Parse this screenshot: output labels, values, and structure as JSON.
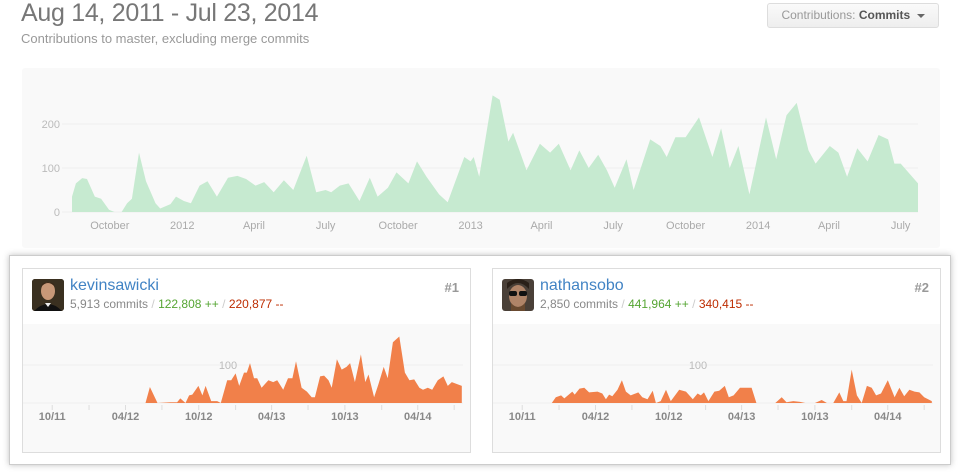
{
  "header": {
    "title": "Aug 14, 2011 - Jul 23, 2014",
    "subtitle": "Contributions to master, excluding merge commits",
    "dropdown": {
      "label": "Contributions:",
      "selected": "Commits",
      "icon": "caret-down-icon"
    }
  },
  "colors": {
    "main_fill": "#c6ead0",
    "contributor_fill": "#f1804a",
    "link": "#4183c4",
    "additions": "#55a532",
    "deletions": "#bd2c00"
  },
  "chart_data": [
    {
      "type": "area",
      "xdomain": [
        "2011-08-14",
        "2014-07-23"
      ],
      "ylim": [
        0,
        270
      ],
      "yticks": [
        0,
        100,
        200
      ],
      "xticks": [
        {
          "date": "2011-10-01",
          "label": "October"
        },
        {
          "date": "2012-01-01",
          "label": "2012"
        },
        {
          "date": "2012-04-01",
          "label": "April"
        },
        {
          "date": "2012-07-01",
          "label": "July"
        },
        {
          "date": "2012-10-01",
          "label": "October"
        },
        {
          "date": "2013-01-01",
          "label": "2013"
        },
        {
          "date": "2013-04-01",
          "label": "April"
        },
        {
          "date": "2013-07-01",
          "label": "July"
        },
        {
          "date": "2013-10-01",
          "label": "October"
        },
        {
          "date": "2014-01-01",
          "label": "2014"
        },
        {
          "date": "2014-04-01",
          "label": "April"
        },
        {
          "date": "2014-07-01",
          "label": "July"
        }
      ],
      "grid": true,
      "points": [
        [
          "2011-08-14",
          35
        ],
        [
          "2011-08-19",
          65
        ],
        [
          "2011-08-27",
          77
        ],
        [
          "2011-09-02",
          75
        ],
        [
          "2011-09-07",
          55
        ],
        [
          "2011-09-12",
          35
        ],
        [
          "2011-09-20",
          30
        ],
        [
          "2011-09-30",
          5
        ],
        [
          "2011-10-07",
          0
        ],
        [
          "2011-10-16",
          0
        ],
        [
          "2011-10-23",
          20
        ],
        [
          "2011-10-29",
          30
        ],
        [
          "2011-11-07",
          135
        ],
        [
          "2011-11-16",
          70
        ],
        [
          "2011-11-28",
          20
        ],
        [
          "2011-12-04",
          8
        ],
        [
          "2011-12-17",
          18
        ],
        [
          "2011-12-24",
          35
        ],
        [
          "2012-01-03",
          25
        ],
        [
          "2012-01-12",
          20
        ],
        [
          "2012-01-23",
          60
        ],
        [
          "2012-02-02",
          70
        ],
        [
          "2012-02-14",
          35
        ],
        [
          "2012-02-28",
          78
        ],
        [
          "2012-03-11",
          82
        ],
        [
          "2012-03-22",
          75
        ],
        [
          "2012-04-03",
          60
        ],
        [
          "2012-04-14",
          68
        ],
        [
          "2012-04-26",
          45
        ],
        [
          "2012-05-09",
          72
        ],
        [
          "2012-05-21",
          50
        ],
        [
          "2012-06-07",
          128
        ],
        [
          "2012-06-19",
          45
        ],
        [
          "2012-07-01",
          50
        ],
        [
          "2012-07-08",
          45
        ],
        [
          "2012-07-19",
          60
        ],
        [
          "2012-07-30",
          65
        ],
        [
          "2012-08-13",
          25
        ],
        [
          "2012-08-26",
          78
        ],
        [
          "2012-09-05",
          35
        ],
        [
          "2012-09-18",
          55
        ],
        [
          "2012-09-29",
          90
        ],
        [
          "2012-10-14",
          65
        ],
        [
          "2012-10-25",
          115
        ],
        [
          "2012-11-06",
          80
        ],
        [
          "2012-11-22",
          40
        ],
        [
          "2012-12-03",
          22
        ],
        [
          "2012-12-24",
          125
        ],
        [
          "2013-01-01",
          115
        ],
        [
          "2013-01-05",
          125
        ],
        [
          "2013-01-12",
          80
        ],
        [
          "2013-01-29",
          265
        ],
        [
          "2013-02-07",
          255
        ],
        [
          "2013-02-18",
          160
        ],
        [
          "2013-02-24",
          180
        ],
        [
          "2013-03-13",
          95
        ],
        [
          "2013-03-30",
          155
        ],
        [
          "2013-04-12",
          135
        ],
        [
          "2013-04-23",
          155
        ],
        [
          "2013-05-08",
          95
        ],
        [
          "2013-05-19",
          140
        ],
        [
          "2013-05-31",
          100
        ],
        [
          "2013-06-12",
          130
        ],
        [
          "2013-06-23",
          95
        ],
        [
          "2013-07-03",
          55
        ],
        [
          "2013-07-18",
          120
        ],
        [
          "2013-07-27",
          50
        ],
        [
          "2013-08-17",
          165
        ],
        [
          "2013-08-30",
          150
        ],
        [
          "2013-09-07",
          125
        ],
        [
          "2013-09-18",
          170
        ],
        [
          "2013-10-01",
          170
        ],
        [
          "2013-10-18",
          215
        ],
        [
          "2013-11-04",
          125
        ],
        [
          "2013-11-15",
          190
        ],
        [
          "2013-11-26",
          100
        ],
        [
          "2013-12-07",
          150
        ],
        [
          "2013-12-21",
          40
        ],
        [
          "2014-01-11",
          215
        ],
        [
          "2014-01-24",
          120
        ],
        [
          "2014-02-06",
          220
        ],
        [
          "2014-02-19",
          248
        ],
        [
          "2014-03-06",
          140
        ],
        [
          "2014-03-15",
          110
        ],
        [
          "2014-04-02",
          150
        ],
        [
          "2014-04-13",
          135
        ],
        [
          "2014-04-24",
          80
        ],
        [
          "2014-05-07",
          145
        ],
        [
          "2014-05-20",
          115
        ],
        [
          "2014-06-03",
          175
        ],
        [
          "2014-06-15",
          165
        ],
        [
          "2014-06-23",
          110
        ],
        [
          "2014-07-01",
          110
        ],
        [
          "2014-07-23",
          65
        ]
      ]
    }
  ],
  "contributors": [
    {
      "rank": "#1",
      "username": "kevinsawicki",
      "commits": "5,913 commits",
      "additions": "122,808 ++",
      "deletions": "220,877 --",
      "separator": "/",
      "avatar": "avatar-kevinsawicki",
      "chart": {
        "type": "area",
        "xdomain": [
          "2011-08-14",
          "2014-07-23"
        ],
        "gridline": 100,
        "gridline_label": "100",
        "xticks": [
          {
            "date": "2011-10-01",
            "label": "10/11"
          },
          {
            "date": "2012-01-01",
            "label": ""
          },
          {
            "date": "2012-04-01",
            "label": "04/12"
          },
          {
            "date": "2012-07-01",
            "label": ""
          },
          {
            "date": "2012-10-01",
            "label": "10/12"
          },
          {
            "date": "2013-01-01",
            "label": ""
          },
          {
            "date": "2013-04-01",
            "label": "04/13"
          },
          {
            "date": "2013-07-01",
            "label": ""
          },
          {
            "date": "2013-10-01",
            "label": "10/13"
          },
          {
            "date": "2014-01-01",
            "label": ""
          },
          {
            "date": "2014-04-01",
            "label": "04/14"
          },
          {
            "date": "2014-07-01",
            "label": ""
          }
        ],
        "points": [
          [
            "2011-08-14",
            0
          ],
          [
            "2012-05-21",
            0
          ],
          [
            "2012-06-01",
            42
          ],
          [
            "2012-06-20",
            0
          ],
          [
            "2012-07-22",
            2
          ],
          [
            "2012-08-08",
            2
          ],
          [
            "2012-08-16",
            12
          ],
          [
            "2012-08-29",
            0
          ],
          [
            "2012-09-07",
            20
          ],
          [
            "2012-09-15",
            22
          ],
          [
            "2012-09-30",
            45
          ],
          [
            "2012-10-10",
            20
          ],
          [
            "2012-10-18",
            45
          ],
          [
            "2012-11-01",
            5
          ],
          [
            "2012-11-16",
            5
          ],
          [
            "2012-11-25",
            0
          ],
          [
            "2012-12-11",
            60
          ],
          [
            "2012-12-21",
            60
          ],
          [
            "2013-01-01",
            78
          ],
          [
            "2013-01-10",
            45
          ],
          [
            "2013-01-22",
            80
          ],
          [
            "2013-01-29",
            80
          ],
          [
            "2013-02-06",
            105
          ],
          [
            "2013-02-16",
            65
          ],
          [
            "2013-02-24",
            65
          ],
          [
            "2013-03-07",
            40
          ],
          [
            "2013-03-24",
            60
          ],
          [
            "2013-04-05",
            55
          ],
          [
            "2013-04-15",
            60
          ],
          [
            "2013-04-30",
            35
          ],
          [
            "2013-05-12",
            65
          ],
          [
            "2013-05-23",
            65
          ],
          [
            "2013-06-01",
            110
          ],
          [
            "2013-06-15",
            40
          ],
          [
            "2013-06-28",
            30
          ],
          [
            "2013-07-10",
            15
          ],
          [
            "2013-07-18",
            15
          ],
          [
            "2013-07-31",
            70
          ],
          [
            "2013-08-10",
            72
          ],
          [
            "2013-08-21",
            60
          ],
          [
            "2013-08-29",
            40
          ],
          [
            "2013-09-11",
            115
          ],
          [
            "2013-09-23",
            88
          ],
          [
            "2013-10-05",
            95
          ],
          [
            "2013-10-14",
            105
          ],
          [
            "2013-10-26",
            55
          ],
          [
            "2013-11-10",
            128
          ],
          [
            "2013-11-21",
            55
          ],
          [
            "2013-11-29",
            75
          ],
          [
            "2013-12-13",
            15
          ],
          [
            "2013-12-24",
            50
          ],
          [
            "2014-01-06",
            95
          ],
          [
            "2014-01-16",
            65
          ],
          [
            "2014-01-29",
            160
          ],
          [
            "2014-02-14",
            175
          ],
          [
            "2014-02-28",
            80
          ],
          [
            "2014-03-11",
            60
          ],
          [
            "2014-03-23",
            62
          ],
          [
            "2014-04-05",
            40
          ],
          [
            "2014-04-14",
            35
          ],
          [
            "2014-04-26",
            40
          ],
          [
            "2014-05-07",
            35
          ],
          [
            "2014-05-21",
            60
          ],
          [
            "2014-06-04",
            70
          ],
          [
            "2014-06-15",
            45
          ],
          [
            "2014-06-25",
            55
          ],
          [
            "2014-07-20",
            45
          ]
        ]
      }
    },
    {
      "rank": "#2",
      "username": "nathansobo",
      "commits": "2,850 commits",
      "additions": "441,964 ++",
      "deletions": "340,415 --",
      "separator": "/",
      "avatar": "avatar-nathansobo",
      "chart": {
        "type": "area",
        "xdomain": [
          "2011-08-14",
          "2014-07-23"
        ],
        "gridline": 100,
        "gridline_label": "100",
        "xticks": [
          {
            "date": "2011-10-01",
            "label": "10/11"
          },
          {
            "date": "2012-01-01",
            "label": ""
          },
          {
            "date": "2012-04-01",
            "label": "04/12"
          },
          {
            "date": "2012-07-01",
            "label": ""
          },
          {
            "date": "2012-10-01",
            "label": "10/12"
          },
          {
            "date": "2013-01-01",
            "label": ""
          },
          {
            "date": "2013-04-01",
            "label": "04/13"
          },
          {
            "date": "2013-07-01",
            "label": ""
          },
          {
            "date": "2013-10-01",
            "label": "10/13"
          },
          {
            "date": "2014-01-01",
            "label": ""
          },
          {
            "date": "2014-04-01",
            "label": "04/14"
          },
          {
            "date": "2014-07-01",
            "label": ""
          }
        ],
        "points": [
          [
            "2011-08-14",
            0
          ],
          [
            "2011-12-14",
            0
          ],
          [
            "2011-12-24",
            15
          ],
          [
            "2012-01-06",
            20
          ],
          [
            "2012-01-14",
            12
          ],
          [
            "2012-02-03",
            30
          ],
          [
            "2012-02-09",
            22
          ],
          [
            "2012-02-21",
            38
          ],
          [
            "2012-03-04",
            40
          ],
          [
            "2012-03-16",
            28
          ],
          [
            "2012-04-06",
            30
          ],
          [
            "2012-04-18",
            25
          ],
          [
            "2012-04-27",
            10
          ],
          [
            "2012-05-05",
            22
          ],
          [
            "2012-05-13",
            18
          ],
          [
            "2012-05-26",
            35
          ],
          [
            "2012-06-06",
            60
          ],
          [
            "2012-06-16",
            30
          ],
          [
            "2012-06-28",
            20
          ],
          [
            "2012-07-17",
            28
          ],
          [
            "2012-07-27",
            15
          ],
          [
            "2012-08-09",
            10
          ],
          [
            "2012-08-22",
            32
          ],
          [
            "2012-08-30",
            0
          ],
          [
            "2012-09-11",
            5
          ],
          [
            "2012-09-24",
            35
          ],
          [
            "2012-10-06",
            5
          ],
          [
            "2012-10-27",
            35
          ],
          [
            "2012-11-13",
            30
          ],
          [
            "2012-11-30",
            10
          ],
          [
            "2012-12-12",
            25
          ],
          [
            "2012-12-20",
            20
          ],
          [
            "2012-12-28",
            28
          ],
          [
            "2013-01-08",
            5
          ],
          [
            "2013-01-23",
            30
          ],
          [
            "2013-02-04",
            32
          ],
          [
            "2013-02-18",
            45
          ],
          [
            "2013-02-28",
            15
          ],
          [
            "2013-03-12",
            20
          ],
          [
            "2013-03-28",
            40
          ],
          [
            "2013-04-14",
            40
          ],
          [
            "2013-04-26",
            40
          ],
          [
            "2013-05-08",
            0
          ],
          [
            "2013-06-07",
            0
          ],
          [
            "2013-06-24",
            0
          ],
          [
            "2013-07-10",
            15
          ],
          [
            "2013-07-22",
            2
          ],
          [
            "2013-08-08",
            5
          ],
          [
            "2013-08-25",
            3
          ],
          [
            "2013-09-07",
            0
          ],
          [
            "2013-10-01",
            0
          ],
          [
            "2013-10-18",
            8
          ],
          [
            "2013-10-31",
            0
          ],
          [
            "2013-11-16",
            0
          ],
          [
            "2013-12-01",
            28
          ],
          [
            "2013-12-11",
            5
          ],
          [
            "2013-12-19",
            5
          ],
          [
            "2014-01-01",
            88
          ],
          [
            "2014-01-14",
            20
          ],
          [
            "2014-01-26",
            0
          ],
          [
            "2014-02-08",
            45
          ],
          [
            "2014-02-20",
            40
          ],
          [
            "2014-03-03",
            20
          ],
          [
            "2014-03-15",
            25
          ],
          [
            "2014-04-01",
            60
          ],
          [
            "2014-04-18",
            15
          ],
          [
            "2014-04-30",
            40
          ],
          [
            "2014-05-12",
            18
          ],
          [
            "2014-05-25",
            35
          ],
          [
            "2014-06-07",
            30
          ],
          [
            "2014-06-19",
            28
          ],
          [
            "2014-07-01",
            15
          ],
          [
            "2014-07-20",
            5
          ]
        ]
      }
    }
  ]
}
